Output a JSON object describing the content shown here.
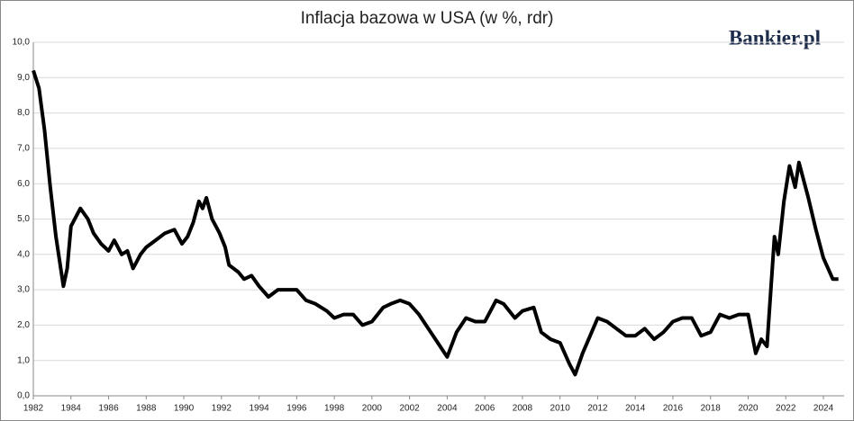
{
  "chart_data": {
    "type": "line",
    "title": "Inflacja bazowa w USA (w %, rdr)",
    "logo": "Bankier.pl",
    "x": [
      1982.0,
      1982.3,
      1982.6,
      1982.9,
      1983.2,
      1983.6,
      1983.8,
      1984.0,
      1984.5,
      1984.9,
      1985.2,
      1985.6,
      1986.0,
      1986.3,
      1986.7,
      1987.0,
      1987.3,
      1987.7,
      1988.0,
      1988.5,
      1989.0,
      1989.5,
      1989.9,
      1990.2,
      1990.5,
      1990.8,
      1991.0,
      1991.2,
      1991.5,
      1991.9,
      1992.2,
      1992.4,
      1992.9,
      1993.2,
      1993.6,
      1994.0,
      1994.5,
      1995.0,
      1995.5,
      1996.0,
      1996.5,
      1997.0,
      1997.6,
      1998.0,
      1998.5,
      1999.0,
      1999.5,
      2000.0,
      2000.6,
      2001.0,
      2001.5,
      2002.0,
      2002.5,
      2003.0,
      2003.5,
      2004.0,
      2004.5,
      2005.0,
      2005.5,
      2006.0,
      2006.6,
      2007.0,
      2007.6,
      2008.0,
      2008.6,
      2009.0,
      2009.5,
      2010.0,
      2010.5,
      2010.8,
      2011.2,
      2011.6,
      2012.0,
      2012.5,
      2013.0,
      2013.5,
      2014.0,
      2014.5,
      2015.0,
      2015.5,
      2016.0,
      2016.5,
      2017.0,
      2017.5,
      2018.0,
      2018.5,
      2019.0,
      2019.5,
      2020.0,
      2020.4,
      2020.7,
      2021.0,
      2021.4,
      2021.6,
      2021.9,
      2022.2,
      2022.5,
      2022.7,
      2023.2,
      2023.6,
      2024.0,
      2024.5,
      2024.8
    ],
    "series": [
      {
        "name": "Inflacja bazowa",
        "color": "#000000",
        "values": [
          9.2,
          8.7,
          7.5,
          5.9,
          4.5,
          3.1,
          3.6,
          4.8,
          5.3,
          5.0,
          4.6,
          4.3,
          4.1,
          4.4,
          4.0,
          4.1,
          3.6,
          4.0,
          4.2,
          4.4,
          4.6,
          4.7,
          4.3,
          4.5,
          4.9,
          5.5,
          5.3,
          5.6,
          5.0,
          4.6,
          4.2,
          3.7,
          3.5,
          3.3,
          3.4,
          3.1,
          2.8,
          3.0,
          3.0,
          3.0,
          2.7,
          2.6,
          2.4,
          2.2,
          2.3,
          2.3,
          2.0,
          2.1,
          2.5,
          2.6,
          2.7,
          2.6,
          2.3,
          1.9,
          1.5,
          1.1,
          1.8,
          2.2,
          2.1,
          2.1,
          2.7,
          2.6,
          2.2,
          2.4,
          2.5,
          1.8,
          1.6,
          1.5,
          0.9,
          0.6,
          1.2,
          1.7,
          2.2,
          2.1,
          1.9,
          1.7,
          1.7,
          1.9,
          1.6,
          1.8,
          2.1,
          2.2,
          2.2,
          1.7,
          1.8,
          2.3,
          2.2,
          2.3,
          2.3,
          1.2,
          1.6,
          1.4,
          4.5,
          4.0,
          5.5,
          6.5,
          5.9,
          6.6,
          5.6,
          4.7,
          3.9,
          3.3,
          3.3
        ]
      }
    ],
    "xlim": [
      1982,
      2025.1
    ],
    "xticks": [
      1982,
      1984,
      1986,
      1988,
      1990,
      1992,
      1994,
      1996,
      1998,
      2000,
      2002,
      2004,
      2006,
      2008,
      2010,
      2012,
      2014,
      2016,
      2018,
      2020,
      2022,
      2024
    ],
    "ylim": [
      0,
      10
    ],
    "yticks": [
      {
        "value": 0,
        "label": "0,0"
      },
      {
        "value": 1,
        "label": "1,0"
      },
      {
        "value": 2,
        "label": "2,0"
      },
      {
        "value": 3,
        "label": "3,0"
      },
      {
        "value": 4,
        "label": "4,0"
      },
      {
        "value": 5,
        "label": "5,0"
      },
      {
        "value": 6,
        "label": "6,0"
      },
      {
        "value": 7,
        "label": "7,0"
      },
      {
        "value": 8,
        "label": "8,0"
      },
      {
        "value": 9,
        "label": "9,0"
      },
      {
        "value": 10,
        "label": "10,0"
      }
    ],
    "grid": true
  }
}
